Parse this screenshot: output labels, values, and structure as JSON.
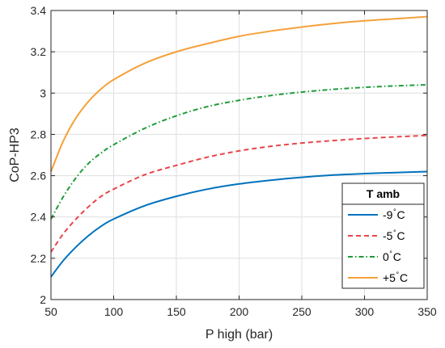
{
  "chart_data": {
    "type": "line",
    "xlabel": "P high (bar)",
    "ylabel": "CoP-HP3",
    "xlim": [
      50,
      350
    ],
    "ylim": [
      2,
      3.4
    ],
    "xticks": [
      "50",
      "100",
      "150",
      "200",
      "250",
      "300",
      "350"
    ],
    "yticks": [
      "2",
      "2.2",
      "2.4",
      "2.6",
      "2.8",
      "3",
      "3.2",
      "3.4"
    ],
    "grid": true,
    "legend": {
      "title": "T amb",
      "position": "bottom-right",
      "unit": "C",
      "degree_mark": "°"
    },
    "x": [
      50,
      60,
      70,
      80,
      90,
      100,
      125,
      150,
      175,
      200,
      225,
      250,
      275,
      300,
      325,
      350
    ],
    "series": [
      {
        "name": "-9",
        "color": "#0072BD",
        "dash": "solid",
        "values": [
          2.11,
          2.19,
          2.255,
          2.31,
          2.355,
          2.39,
          2.455,
          2.5,
          2.535,
          2.56,
          2.578,
          2.592,
          2.603,
          2.61,
          2.615,
          2.62
        ]
      },
      {
        "name": "-5",
        "color": "#E8464B",
        "dash": "dashed",
        "values": [
          2.23,
          2.32,
          2.39,
          2.45,
          2.5,
          2.535,
          2.605,
          2.65,
          2.69,
          2.72,
          2.742,
          2.758,
          2.77,
          2.78,
          2.788,
          2.795
        ]
      },
      {
        "name": "0",
        "color": "#1F9B3A",
        "dash": "dashdot",
        "values": [
          2.39,
          2.5,
          2.59,
          2.66,
          2.71,
          2.75,
          2.83,
          2.89,
          2.935,
          2.965,
          2.988,
          3.005,
          3.018,
          3.028,
          3.035,
          3.04
        ]
      },
      {
        "name": "+5",
        "color": "#F5A13A",
        "dash": "solid",
        "values": [
          2.62,
          2.77,
          2.88,
          2.96,
          3.02,
          3.065,
          3.145,
          3.2,
          3.24,
          3.275,
          3.3,
          3.32,
          3.337,
          3.35,
          3.36,
          3.37
        ]
      }
    ]
  }
}
